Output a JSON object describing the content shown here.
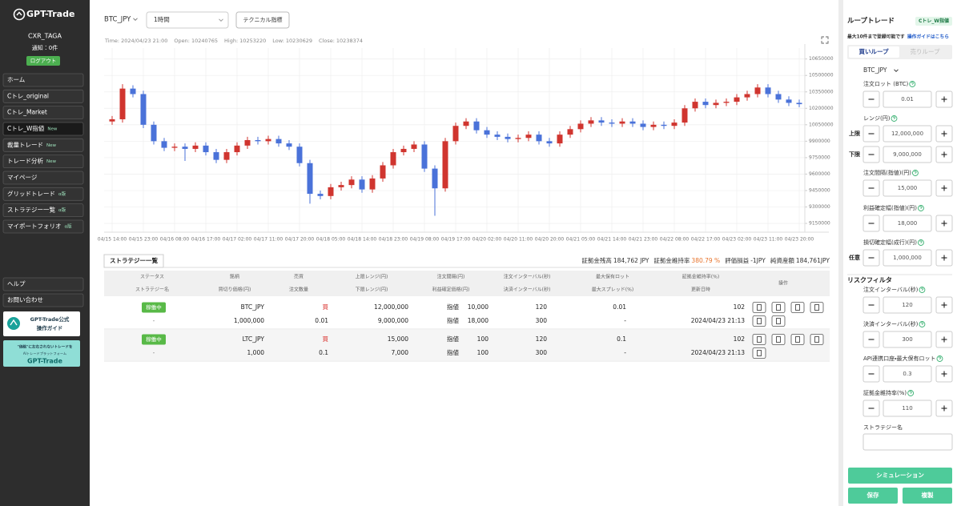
{
  "sidebar": {
    "logo": "GPT-Trade",
    "user": "CXR_TAGA",
    "notice": "通知：0件",
    "logout": "ログアウト",
    "active_menu": 3,
    "menu": [
      {
        "label": "ホーム"
      },
      {
        "label": "Cトレ_original"
      },
      {
        "label": "Cトレ_Market"
      },
      {
        "label": "Cトレ_W指値",
        "badge": "New"
      },
      {
        "label": "裁量トレード",
        "badge": "New"
      },
      {
        "label": "トレード分析",
        "badge": "New"
      },
      {
        "label": "マイページ"
      },
      {
        "label": "グリッドトレード",
        "badge": "α版"
      },
      {
        "label": "ストラテジー一覧",
        "badge": "α版"
      },
      {
        "label": "マイポートフォリオ",
        "badge": "α版"
      }
    ],
    "footer_menu": [
      "ヘルプ",
      "お問い合わせ"
    ],
    "banners": [
      [
        "GPT-Trade公式",
        "操作ガイド"
      ],
      [
        "\"価格\"に左右されないトレードを",
        "AIトレードプラットフォーム",
        "GPT-Trade"
      ]
    ]
  },
  "toolbar": {
    "symbol": "BTC_JPY",
    "interval": "1時間",
    "indicators": "テクニカル指標"
  },
  "chart_data": {
    "type": "candlestick",
    "legend": [
      {
        "label": "Time:",
        "value": "2024/04/23 21:00"
      },
      {
        "label": "Open:",
        "value": 10240765
      },
      {
        "label": "High:",
        "value": 10253220
      },
      {
        "label": "Low:",
        "value": 10230629
      },
      {
        "label": "Close:",
        "value": 10238374
      }
    ],
    "categories": [
      "04/15 14:00",
      null,
      null,
      "04/15 23:00",
      null,
      null,
      "04/16 08:00",
      null,
      null,
      "04/16 17:00",
      null,
      null,
      "04/17 02:00",
      null,
      null,
      "04/17 11:00",
      null,
      null,
      "04/17 20:00",
      null,
      null,
      "04/18 05:00",
      null,
      null,
      "04/18 14:00",
      null,
      null,
      "04/18 23:00",
      null,
      null,
      "04/19 08:00",
      null,
      null,
      "04/19 17:00",
      null,
      null,
      "04/20 02:00",
      null,
      null,
      "04/20 11:00",
      null,
      null,
      "04/20 20:00",
      null,
      null,
      "04/21 05:00",
      null,
      null,
      "04/21 14:00",
      null,
      null,
      "04/21 23:00",
      null,
      null,
      "04/22 08:00",
      null,
      null,
      "04/22 17:00",
      null,
      null,
      "04/23 02:00",
      null,
      null,
      "04/23 11:00",
      null,
      null,
      "04/23 20:00"
    ],
    "open": [
      10080000,
      10100000,
      10380000,
      10330000,
      10050000,
      9900000,
      9840000,
      9850000,
      9830000,
      9860000,
      9800000,
      9730000,
      9800000,
      9860000,
      9910000,
      9900000,
      9920000,
      9880000,
      9850000,
      9700000,
      9420000,
      9400000,
      9480000,
      9500000,
      9550000,
      9460000,
      9560000,
      9680000,
      9800000,
      9830000,
      9870000,
      9650000,
      9470000,
      9900000,
      10040000,
      10080000,
      10000000,
      9960000,
      9940000,
      9920000,
      9930000,
      9960000,
      9900000,
      9880000,
      9960000,
      10010000,
      10060000,
      10090000,
      10070000,
      10060000,
      10080000,
      10060000,
      10030000,
      10050000,
      10040000,
      10070000,
      10200000,
      10260000,
      10230000,
      10250000,
      10260000,
      10300000,
      10330000,
      10390000,
      10330000,
      10280000,
      10250000
    ],
    "high": [
      10130000,
      10420000,
      10410000,
      10360000,
      10080000,
      9930000,
      9880000,
      9880000,
      9890000,
      9890000,
      9830000,
      9830000,
      9890000,
      9940000,
      9940000,
      9950000,
      9950000,
      9910000,
      9880000,
      9730000,
      9450000,
      9510000,
      9530000,
      9580000,
      9580000,
      9590000,
      9710000,
      9830000,
      9860000,
      9900000,
      9900000,
      9680000,
      9930000,
      10070000,
      10110000,
      10110000,
      10030000,
      9990000,
      9970000,
      9960000,
      9990000,
      9990000,
      9930000,
      9990000,
      10040000,
      10090000,
      10120000,
      10120000,
      10100000,
      10110000,
      10110000,
      10090000,
      10080000,
      10080000,
      10100000,
      10230000,
      10290000,
      10290000,
      10280000,
      10290000,
      10330000,
      10360000,
      10420000,
      10420000,
      10360000,
      10310000,
      10280000
    ],
    "low": [
      10050000,
      10070000,
      10300000,
      10020000,
      9870000,
      9810000,
      9810000,
      9720000,
      9800000,
      9770000,
      9700000,
      9700000,
      9770000,
      9830000,
      9870000,
      9870000,
      9850000,
      9820000,
      9670000,
      9330000,
      9370000,
      9370000,
      9450000,
      9470000,
      9430000,
      9430000,
      9530000,
      9650000,
      9770000,
      9800000,
      9620000,
      9220000,
      9440000,
      9870000,
      10010000,
      9970000,
      9930000,
      9910000,
      9890000,
      9890000,
      9900000,
      9870000,
      9850000,
      9850000,
      9930000,
      9980000,
      10030000,
      10040000,
      10030000,
      10030000,
      10030000,
      10000000,
      10000000,
      10010000,
      10010000,
      10040000,
      10170000,
      10200000,
      10200000,
      10220000,
      10230000,
      10270000,
      10300000,
      10300000,
      10250000,
      10220000,
      10210000
    ],
    "close": [
      10100000,
      10380000,
      10330000,
      10050000,
      9900000,
      9840000,
      9850000,
      9830000,
      9860000,
      9800000,
      9730000,
      9800000,
      9860000,
      9910000,
      9900000,
      9920000,
      9880000,
      9850000,
      9700000,
      9420000,
      9400000,
      9480000,
      9500000,
      9550000,
      9460000,
      9560000,
      9680000,
      9800000,
      9830000,
      9870000,
      9650000,
      9470000,
      9900000,
      10040000,
      10080000,
      10000000,
      9960000,
      9940000,
      9920000,
      9930000,
      9960000,
      9900000,
      9880000,
      9960000,
      10010000,
      10060000,
      10090000,
      10070000,
      10060000,
      10080000,
      10060000,
      10030000,
      10050000,
      10040000,
      10070000,
      10200000,
      10260000,
      10230000,
      10250000,
      10260000,
      10300000,
      10330000,
      10390000,
      10330000,
      10280000,
      10250000,
      10238000
    ],
    "up_color": "#d0352f",
    "down_color": "#4a72d9",
    "ylim": [
      9070000,
      10750000
    ],
    "yticks": [
      9150000,
      9300000,
      9450000,
      9600000,
      9750000,
      9900000,
      10050000,
      10200000,
      10350000,
      10500000,
      10650000
    ],
    "grid": true
  },
  "strategies": {
    "tab": "ストラテジー一覧",
    "summary": [
      {
        "label": "証拠金残高",
        "value": "184,762 JPY"
      },
      {
        "label": "証拠金維持率",
        "value": "380.79 %",
        "color": "#e8742c"
      },
      {
        "label": "評価損益",
        "value": "-1JPY"
      },
      {
        "label": "純資産額",
        "value": "184,761JPY"
      }
    ],
    "header": [
      [
        "ステータス",
        "ストラテジー名"
      ],
      [
        "銘柄",
        "買切り価格(円)"
      ],
      [
        "売買",
        "注文数量"
      ],
      [
        "上限レンジ(円)",
        "下限レンジ(円)"
      ],
      [
        "注文間隔(円)",
        "利益確定価格(円)"
      ],
      [
        "注文インターバル(秒)",
        "決済インターバル(秒)"
      ],
      [
        "最大保有ロット",
        "最大スプレッド(%)"
      ],
      [
        "証拠金維持率(%)",
        "更新日時"
      ]
    ],
    "actions_header": "操作",
    "rows": [
      {
        "top": [
          "稼働中",
          "BTC_JPY",
          "買",
          "12,000,000",
          [
            "指値",
            "10,000"
          ],
          "120",
          "0.01",
          "102"
        ],
        "bottom": [
          "-",
          "1,000,000",
          "0.01",
          "9,000,000",
          [
            "指値",
            "18,000"
          ],
          "300",
          "-",
          "2024/04/23 21:13"
        ]
      },
      {
        "top": [
          "稼働中",
          "LTC_JPY",
          "買",
          "15,000",
          [
            "指値",
            "100"
          ],
          "120",
          "0.1",
          "102"
        ],
        "bottom": [
          "-",
          "1,000",
          "0.1",
          "7,000",
          [
            "指値",
            "100"
          ],
          "300",
          "-",
          "2024/04/23 21:13"
        ]
      }
    ]
  },
  "loop_form": {
    "title": "ループトレード",
    "badge": "Cトレ_W指値",
    "note": "最大10件まで登録可能です",
    "guide_link": "操作ガイドはこちら",
    "tabs": [
      "買いループ",
      "売りループ"
    ],
    "active_tab": 0,
    "symbol": "BTC_JPY",
    "fields": [
      {
        "label": "注文ロット (BTC)",
        "inputs": [
          {
            "value": "0.01"
          }
        ]
      },
      {
        "label": "レンジ(円)",
        "inputs": [
          {
            "prefix": "上限",
            "value": "12,000,000"
          },
          {
            "prefix": "下限",
            "value": "9,000,000"
          }
        ]
      },
      {
        "label": "注文間隔(指値)(円)",
        "inputs": [
          {
            "value": "15,000"
          }
        ]
      },
      {
        "label": "利益確定幅(指値)(円)",
        "inputs": [
          {
            "value": "18,000"
          }
        ]
      },
      {
        "label": "損切確定幅(成行)(円)",
        "inputs": [
          {
            "prefix": "任意",
            "value": "1,000,000"
          }
        ]
      }
    ],
    "risk_title": "リスクフィルタ",
    "risk_fields": [
      {
        "label": "注文インターバル(秒)",
        "inputs": [
          {
            "value": "120"
          }
        ]
      },
      {
        "label": "決済インターバル(秒)",
        "inputs": [
          {
            "value": "300"
          }
        ]
      },
      {
        "label": "API連携口座・最大保有ロット",
        "inputs": [
          {
            "value": "0.3"
          }
        ]
      },
      {
        "label": "証拠金維持率(%)",
        "inputs": [
          {
            "value": "110"
          }
        ]
      }
    ],
    "name_label": "ストラテジー名",
    "buttons": {
      "simulate": "シミュレーション",
      "save": "保存",
      "copy": "複製"
    }
  }
}
